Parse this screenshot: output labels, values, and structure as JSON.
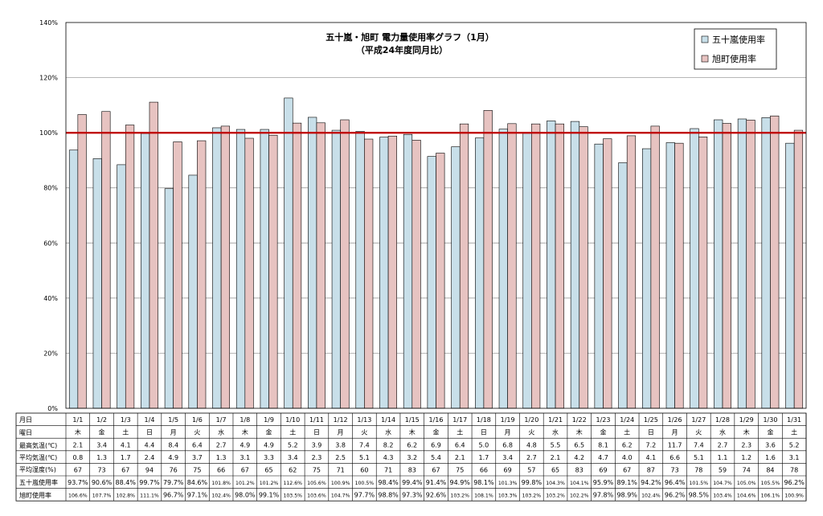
{
  "chart_data": {
    "type": "bar",
    "title": "五十嵐・旭町  電力量使用率グラフ（1月）",
    "subtitle": "（平成24年度同月比）",
    "ylim": [
      0,
      140
    ],
    "y_ticks": [
      "0%",
      "20%",
      "40%",
      "60%",
      "80%",
      "100%",
      "120%",
      "140%"
    ],
    "grid": true,
    "legend_position": "top-right",
    "reference_line": {
      "value": 100,
      "color": "#c00000"
    },
    "categories": [
      "1/1",
      "1/2",
      "1/3",
      "1/4",
      "1/5",
      "1/6",
      "1/7",
      "1/8",
      "1/9",
      "1/10",
      "1/11",
      "1/12",
      "1/13",
      "1/14",
      "1/15",
      "1/16",
      "1/17",
      "1/18",
      "1/19",
      "1/20",
      "1/21",
      "1/22",
      "1/23",
      "1/24",
      "1/25",
      "1/26",
      "1/27",
      "1/28",
      "1/29",
      "1/30",
      "1/31"
    ],
    "series": [
      {
        "name": "五十嵐使用率",
        "color": "#c8dfe9",
        "values": [
          93.7,
          90.6,
          88.4,
          99.7,
          79.7,
          84.6,
          101.8,
          101.2,
          101.2,
          112.6,
          105.6,
          100.9,
          100.5,
          98.4,
          99.4,
          91.4,
          94.9,
          98.1,
          101.3,
          99.8,
          104.3,
          104.1,
          95.9,
          89.1,
          94.2,
          96.4,
          101.5,
          104.7,
          105.0,
          105.5,
          96.2
        ]
      },
      {
        "name": "旭町使用率",
        "color": "#e7c3c1",
        "values": [
          106.6,
          107.7,
          102.8,
          111.1,
          96.7,
          97.1,
          102.4,
          98.0,
          99.1,
          103.5,
          103.6,
          104.7,
          97.7,
          98.8,
          97.3,
          92.6,
          103.2,
          108.1,
          103.3,
          103.2,
          103.2,
          102.2,
          97.8,
          98.9,
          102.4,
          96.2,
          98.5,
          103.4,
          104.6,
          106.1,
          100.9
        ]
      }
    ]
  },
  "table": {
    "labels": {
      "date": "月日",
      "weekday": "曜日",
      "max_temp": "最高気温(℃)",
      "avg_temp": "平均気温(℃)",
      "avg_humidity": "平均湿度(%)",
      "igarashi_rate": "五十嵐使用率",
      "asahi_rate": "旭町使用率"
    },
    "weekday": [
      "木",
      "金",
      "土",
      "日",
      "月",
      "火",
      "水",
      "木",
      "金",
      "土",
      "日",
      "月",
      "火",
      "水",
      "木",
      "金",
      "土",
      "日",
      "月",
      "火",
      "水",
      "木",
      "金",
      "土",
      "日",
      "月",
      "火",
      "水",
      "木",
      "金",
      "土"
    ],
    "max_temp": [
      "2.1",
      "3.4",
      "4.1",
      "4.4",
      "8.4",
      "6.4",
      "2.7",
      "4.9",
      "4.9",
      "5.2",
      "3.9",
      "3.8",
      "7.4",
      "8.2",
      "6.2",
      "6.9",
      "6.4",
      "5.0",
      "6.8",
      "4.8",
      "5.5",
      "6.5",
      "8.1",
      "6.2",
      "7.2",
      "11.7",
      "7.4",
      "2.7",
      "2.3",
      "3.6",
      "5.2"
    ],
    "avg_temp": [
      "0.8",
      "1.3",
      "1.7",
      "2.4",
      "4.9",
      "3.7",
      "1.3",
      "3.1",
      "3.3",
      "3.4",
      "2.3",
      "2.5",
      "5.1",
      "4.3",
      "3.2",
      "5.4",
      "2.1",
      "1.7",
      "3.4",
      "2.7",
      "2.1",
      "4.2",
      "4.7",
      "4.0",
      "4.1",
      "6.6",
      "5.1",
      "1.1",
      "1.2",
      "1.6",
      "3.1"
    ],
    "avg_humidity": [
      "67",
      "73",
      "67",
      "94",
      "76",
      "75",
      "66",
      "67",
      "65",
      "62",
      "75",
      "71",
      "60",
      "71",
      "83",
      "67",
      "75",
      "66",
      "69",
      "57",
      "65",
      "83",
      "69",
      "67",
      "87",
      "73",
      "78",
      "59",
      "74",
      "84",
      "78"
    ],
    "igarashi_rate": [
      "93.7%",
      "90.6%",
      "88.4%",
      "99.7%",
      "79.7%",
      "84.6%",
      "101.8%",
      "101.2%",
      "101.2%",
      "112.6%",
      "105.6%",
      "100.9%",
      "100.5%",
      "98.4%",
      "99.4%",
      "91.4%",
      "94.9%",
      "98.1%",
      "101.3%",
      "99.8%",
      "104.3%",
      "104.1%",
      "95.9%",
      "89.1%",
      "94.2%",
      "96.4%",
      "101.5%",
      "104.7%",
      "105.0%",
      "105.5%",
      "96.2%"
    ],
    "asahi_rate": [
      "106.6%",
      "107.7%",
      "102.8%",
      "111.1%",
      "96.7%",
      "97.1%",
      "102.4%",
      "98.0%",
      "99.1%",
      "103.5%",
      "103.6%",
      "104.7%",
      "97.7%",
      "98.8%",
      "97.3%",
      "92.6%",
      "103.2%",
      "108.1%",
      "103.3%",
      "103.2%",
      "103.2%",
      "102.2%",
      "97.8%",
      "98.9%",
      "102.4%",
      "96.2%",
      "98.5%",
      "103.4%",
      "104.6%",
      "106.1%",
      "100.9%"
    ]
  }
}
